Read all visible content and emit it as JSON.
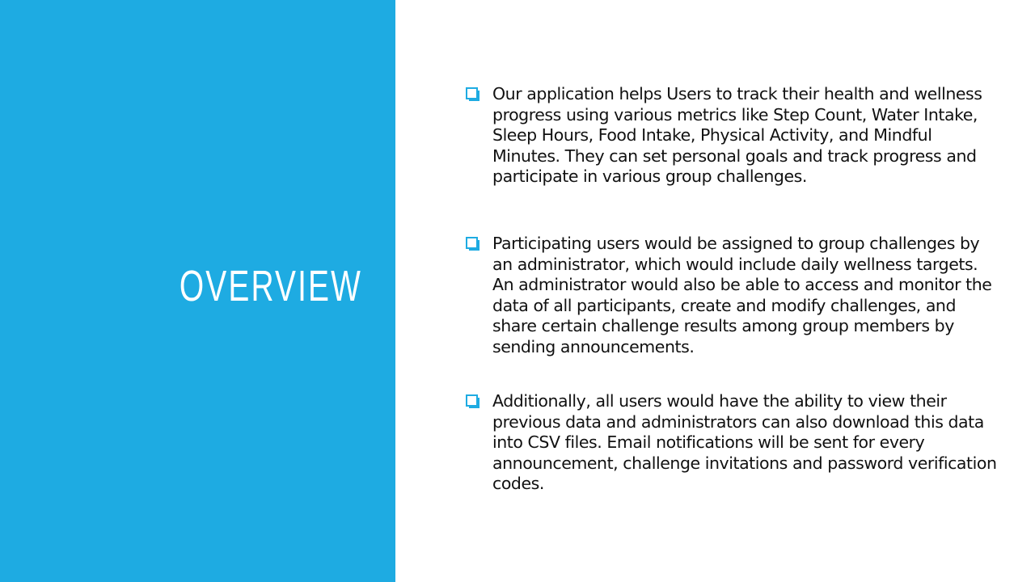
{
  "slide": {
    "title": "OVERVIEW",
    "colors": {
      "panel": "#1eabe2",
      "title_text": "#ffffff",
      "body_text": "#111111",
      "bullet_icon": "#1eabe2"
    },
    "bullet_icon": "checkbox-icon",
    "bullets": [
      {
        "text": "Our application helps Users to track their health and wellness progress using various metrics like Step Count, Water Intake, Sleep Hours, Food Intake, Physical Activity, and Mindful Minutes. They can set personal goals and track progress and participate in various group challenges."
      },
      {
        "text": "Participating users would be assigned to group challenges by an administrator, which would include daily wellness targets. An administrator would also be able to access and monitor the data of all participants, create and modify challenges, and share certain challenge results among group members by sending announcements."
      },
      {
        "text": "Additionally, all users would have the ability to view their previous data and administrators can also download this data into CSV files. Email notifications will be sent for every announcement, challenge invitations and password verification codes."
      }
    ]
  }
}
